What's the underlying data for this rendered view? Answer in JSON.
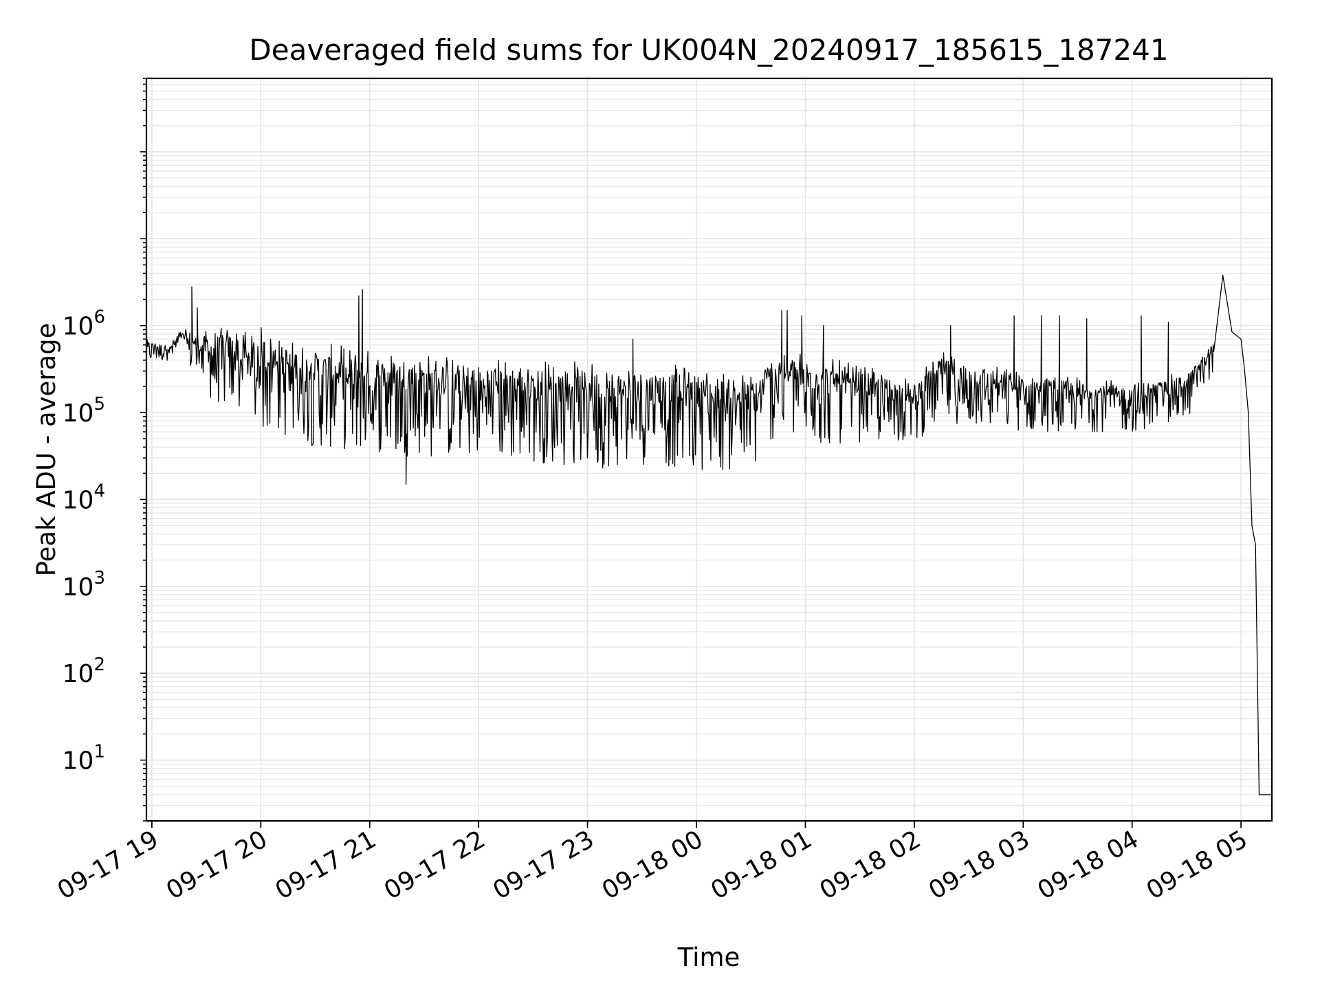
{
  "chart_data": {
    "type": "line",
    "title": "Deaveraged field sums for UK004N_20240917_185615_187241",
    "xlabel": "Time",
    "ylabel": "Peak ADU - average",
    "xscale": "time",
    "yscale": "log",
    "xlim": [
      "2024-09-17 18:57",
      "2024-09-18 05:17"
    ],
    "ylim": [
      2,
      700000000
    ],
    "grid": true,
    "colors": {
      "line": "#000000",
      "grid": "#e5e5e5",
      "axes": "#000000"
    },
    "x_ticks": [
      {
        "t": "2024-09-17 19:00",
        "label": "09-17 19"
      },
      {
        "t": "2024-09-17 20:00",
        "label": "09-17 20"
      },
      {
        "t": "2024-09-17 21:00",
        "label": "09-17 21"
      },
      {
        "t": "2024-09-17 22:00",
        "label": "09-17 22"
      },
      {
        "t": "2024-09-17 23:00",
        "label": "09-17 23"
      },
      {
        "t": "2024-09-18 00:00",
        "label": "09-18 00"
      },
      {
        "t": "2024-09-18 01:00",
        "label": "09-18 01"
      },
      {
        "t": "2024-09-18 02:00",
        "label": "09-18 02"
      },
      {
        "t": "2024-09-18 03:00",
        "label": "09-18 03"
      },
      {
        "t": "2024-09-18 04:00",
        "label": "09-18 04"
      },
      {
        "t": "2024-09-18 05:00",
        "label": "09-18 05"
      }
    ],
    "y_ticks": [
      {
        "value": 10,
        "base": "10",
        "exp": "1"
      },
      {
        "value": 100,
        "base": "10",
        "exp": "2"
      },
      {
        "value": 1000,
        "base": "10",
        "exp": "3"
      },
      {
        "value": 10000,
        "base": "10",
        "exp": "4"
      },
      {
        "value": 100000,
        "base": "10",
        "exp": "5"
      },
      {
        "value": 1000000,
        "base": "10",
        "exp": "6"
      }
    ],
    "series": [
      {
        "envelope": [
          {
            "t": "2024-09-17 18:57",
            "high": 700000,
            "low": 380000
          },
          {
            "t": "2024-09-17 19:10",
            "high": 600000,
            "low": 400000
          },
          {
            "t": "2024-09-17 19:15",
            "high": 900000,
            "low": 500000
          },
          {
            "t": "2024-09-17 19:30",
            "high": 900000,
            "low": 150000
          },
          {
            "t": "2024-09-17 19:45",
            "high": 1000000,
            "low": 100000
          },
          {
            "t": "2024-09-17 20:00",
            "high": 1000000,
            "low": 60000
          },
          {
            "t": "2024-09-17 20:15",
            "high": 700000,
            "low": 50000
          },
          {
            "t": "2024-09-17 20:30",
            "high": 650000,
            "low": 40000
          },
          {
            "t": "2024-09-17 21:00",
            "high": 550000,
            "low": 35000
          },
          {
            "t": "2024-09-17 21:30",
            "high": 500000,
            "low": 30000
          },
          {
            "t": "2024-09-17 22:00",
            "high": 450000,
            "low": 30000
          },
          {
            "t": "2024-09-17 22:30",
            "high": 420000,
            "low": 27000
          },
          {
            "t": "2024-09-17 23:00",
            "high": 400000,
            "low": 22000
          },
          {
            "t": "2024-09-17 23:30",
            "high": 380000,
            "low": 25000
          },
          {
            "t": "2024-09-18 00:00",
            "high": 350000,
            "low": 22000
          },
          {
            "t": "2024-09-18 00:30",
            "high": 300000,
            "low": 20000
          },
          {
            "t": "2024-09-18 00:45",
            "high": 600000,
            "low": 60000
          },
          {
            "t": "2024-09-18 01:00",
            "high": 500000,
            "low": 40000
          },
          {
            "t": "2024-09-18 01:30",
            "high": 350000,
            "low": 45000
          },
          {
            "t": "2024-09-18 02:00",
            "high": 250000,
            "low": 45000
          },
          {
            "t": "2024-09-18 02:15",
            "high": 500000,
            "low": 80000
          },
          {
            "t": "2024-09-18 02:30",
            "high": 400000,
            "low": 70000
          },
          {
            "t": "2024-09-18 03:00",
            "high": 300000,
            "low": 60000
          },
          {
            "t": "2024-09-18 03:30",
            "high": 260000,
            "low": 60000
          },
          {
            "t": "2024-09-18 04:00",
            "high": 220000,
            "low": 60000
          },
          {
            "t": "2024-09-18 04:30",
            "high": 300000,
            "low": 80000
          },
          {
            "t": "2024-09-18 04:45",
            "high": 700000,
            "low": 300000
          }
        ],
        "spikes": [
          {
            "t": "2024-09-17 19:22",
            "value": 2800000
          },
          {
            "t": "2024-09-17 19:25",
            "value": 1600000
          },
          {
            "t": "2024-09-17 20:56",
            "value": 2600000
          },
          {
            "t": "2024-09-17 20:54",
            "value": 2200000
          },
          {
            "t": "2024-09-17 21:20",
            "value": 15000
          },
          {
            "t": "2024-09-17 23:25",
            "value": 700000
          },
          {
            "t": "2024-09-18 00:47",
            "value": 1500000
          },
          {
            "t": "2024-09-18 00:50",
            "value": 1500000
          },
          {
            "t": "2024-09-18 00:58",
            "value": 1300000
          },
          {
            "t": "2024-09-18 01:10",
            "value": 1000000
          },
          {
            "t": "2024-09-18 02:20",
            "value": 1000000
          },
          {
            "t": "2024-09-18 02:55",
            "value": 1300000
          },
          {
            "t": "2024-09-18 03:10",
            "value": 1300000
          },
          {
            "t": "2024-09-18 03:20",
            "value": 1300000
          },
          {
            "t": "2024-09-18 03:35",
            "value": 1200000
          },
          {
            "t": "2024-09-18 04:05",
            "value": 1300000
          },
          {
            "t": "2024-09-18 04:20",
            "value": 1100000
          },
          {
            "t": "2024-09-18 04:50",
            "value": 3800000
          }
        ],
        "decline": [
          {
            "t": "2024-09-18 04:55",
            "value": 850000
          },
          {
            "t": "2024-09-18 05:00",
            "value": 700000
          },
          {
            "t": "2024-09-18 05:02",
            "value": 300000
          },
          {
            "t": "2024-09-18 05:04",
            "value": 100000
          },
          {
            "t": "2024-09-18 05:06",
            "value": 5000
          },
          {
            "t": "2024-09-18 05:08",
            "value": 3000
          },
          {
            "t": "2024-09-18 05:10",
            "value": 4
          },
          {
            "t": "2024-09-18 05:17",
            "value": 4
          }
        ]
      }
    ]
  }
}
